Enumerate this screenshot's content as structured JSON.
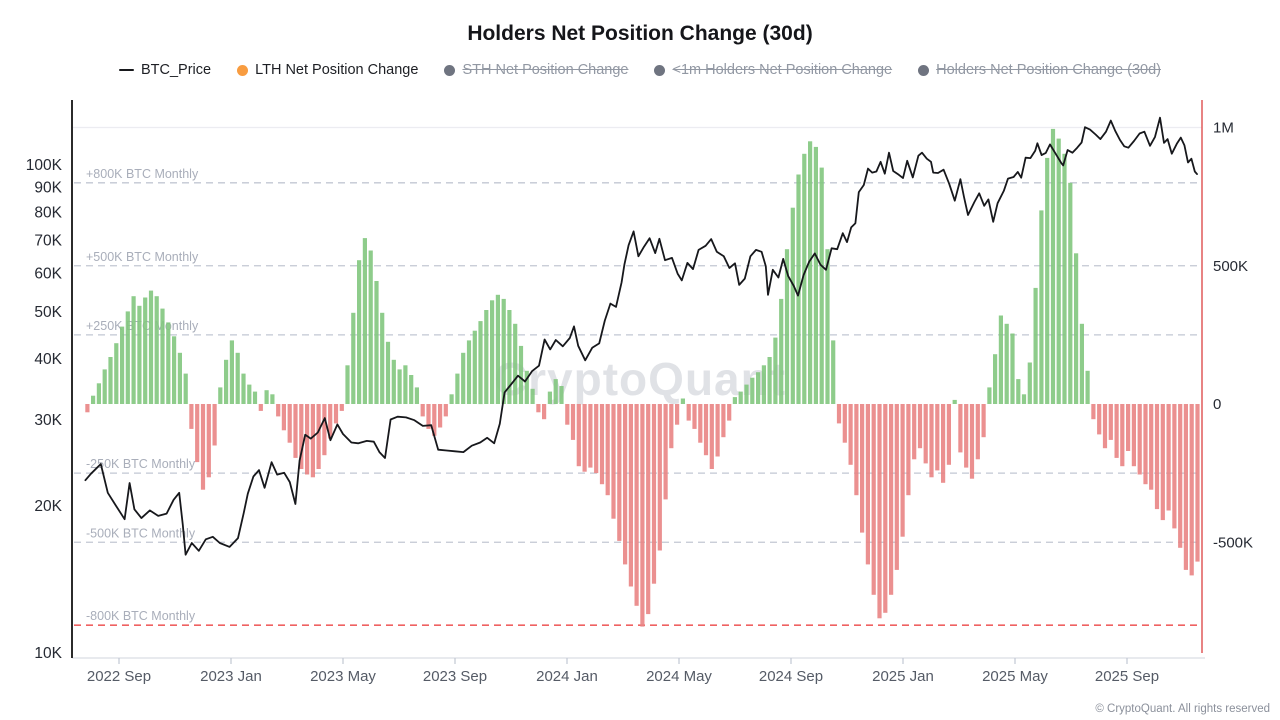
{
  "title": "Holders Net Position Change (30d)",
  "watermark": "CryptoQuant",
  "footer": "© CryptoQuant. All rights reserved",
  "colors": {
    "price_line": "#17181c",
    "bar_positive": "#82c77e",
    "bar_negative": "#e98484",
    "ref_line_gray": "#c2c7d3",
    "ref_line_red": "#ef6262",
    "ref_label": "#a9aeba",
    "left_axis_line": "#2b2b2b",
    "right_axis_line": "#e36464",
    "bottom_axis_line": "#dadde3",
    "top_gridline": "#ececf1",
    "axis_tick_label_dark": "#262a33",
    "x_tick_label": "#555b66",
    "legend_dot_orange": "#f89c40",
    "legend_dot_gray": "#6f7480"
  },
  "legend": {
    "items": [
      {
        "label": "BTC_Price",
        "marker": "line",
        "disabled": false
      },
      {
        "label": "LTH Net Position Change",
        "marker": "dot-orange",
        "disabled": false
      },
      {
        "label": "STH Net Position Change",
        "marker": "dot-gray",
        "disabled": true
      },
      {
        "label": "<1m Holders Net Position Change",
        "marker": "dot-gray",
        "disabled": true
      },
      {
        "label": "Holders Net Position Change (30d)",
        "marker": "dot-gray",
        "disabled": true
      }
    ]
  },
  "chart_data": {
    "type": "mixed: bar (LTH net position change, right axis) + line (BTC price, log left axis)",
    "title": "Holders Net Position Change (30d)",
    "x_unit": "months since 2022-08-01",
    "x_ticks": [
      {
        "label": "2022 Sep",
        "m": 1
      },
      {
        "label": "2023 Jan",
        "m": 5
      },
      {
        "label": "2023 May",
        "m": 9
      },
      {
        "label": "2023 Sep",
        "m": 13
      },
      {
        "label": "2024 Jan",
        "m": 17
      },
      {
        "label": "2024 May",
        "m": 21
      },
      {
        "label": "2024 Sep",
        "m": 25
      },
      {
        "label": "2025 Jan",
        "m": 29
      },
      {
        "label": "2025 May",
        "m": 33
      },
      {
        "label": "2025 Sep",
        "m": 37
      }
    ],
    "left_axis": {
      "scale": "log",
      "unit": "BTC price, thousands USD",
      "ticks": [
        {
          "label": "10K",
          "value": 10
        },
        {
          "label": "20K",
          "value": 20
        },
        {
          "label": "30K",
          "value": 30
        },
        {
          "label": "40K",
          "value": 40
        },
        {
          "label": "50K",
          "value": 50
        },
        {
          "label": "60K",
          "value": 60
        },
        {
          "label": "70K",
          "value": 70
        },
        {
          "label": "80K",
          "value": 80
        },
        {
          "label": "90K",
          "value": 90
        },
        {
          "label": "100K",
          "value": 100
        }
      ]
    },
    "right_axis": {
      "scale": "linear",
      "unit": "BTC net position change (thousands BTC)",
      "ticks": [
        {
          "label": "1M",
          "value": 1000
        },
        {
          "label": "500K",
          "value": 500
        },
        {
          "label": "0",
          "value": 0
        },
        {
          "label": "-500K",
          "value": -500
        }
      ],
      "visible_range": [
        -900,
        1100
      ]
    },
    "reference_lines": [
      {
        "label": "+800K BTC Monthly",
        "value": 800,
        "style": "gray"
      },
      {
        "label": "+500K BTC Monthly",
        "value": 500,
        "style": "gray"
      },
      {
        "label": "+250K BTC Monthly",
        "value": 250,
        "style": "gray"
      },
      {
        "label": "-250K BTC Monthly",
        "value": -250,
        "style": "gray"
      },
      {
        "label": "-500K BTC Monthly",
        "value": -500,
        "style": "gray"
      },
      {
        "label": "-800K BTC Monthly",
        "value": -800,
        "style": "red"
      }
    ],
    "bar_series": {
      "name": "LTH Net Position Change",
      "unit": "thousands of BTC (30d net change)",
      "start_month_offset": -0.13,
      "month_step": 0.2065,
      "values": [
        -30,
        30,
        75,
        125,
        170,
        220,
        280,
        335,
        390,
        355,
        385,
        410,
        390,
        345,
        295,
        245,
        185,
        110,
        -90,
        -210,
        -310,
        -265,
        -150,
        60,
        160,
        230,
        185,
        110,
        70,
        45,
        -25,
        50,
        35,
        -45,
        -95,
        -140,
        -195,
        -235,
        -255,
        -265,
        -235,
        -185,
        -125,
        -70,
        -25,
        140,
        330,
        520,
        600,
        555,
        445,
        330,
        225,
        160,
        125,
        140,
        105,
        60,
        -45,
        -90,
        -115,
        -85,
        -45,
        35,
        110,
        185,
        230,
        265,
        300,
        340,
        375,
        395,
        380,
        340,
        290,
        210,
        120,
        55,
        -30,
        -55,
        45,
        90,
        65,
        -75,
        -130,
        -225,
        -245,
        -230,
        -250,
        -290,
        -330,
        -415,
        -495,
        -580,
        -660,
        -730,
        -805,
        -760,
        -650,
        -530,
        -345,
        -160,
        -75,
        20,
        -60,
        -90,
        -140,
        -185,
        -235,
        -190,
        -120,
        -60,
        25,
        45,
        70,
        95,
        115,
        140,
        170,
        240,
        380,
        560,
        710,
        830,
        905,
        950,
        930,
        855,
        560,
        230,
        -70,
        -140,
        -220,
        -330,
        -465,
        -580,
        -690,
        -775,
        -755,
        -690,
        -600,
        -480,
        -330,
        -200,
        -160,
        -215,
        -265,
        -240,
        -285,
        -220,
        15,
        -175,
        -230,
        -270,
        -200,
        -120,
        60,
        180,
        320,
        290,
        255,
        90,
        35,
        150,
        420,
        700,
        890,
        995,
        960,
        905,
        800,
        545,
        290,
        120,
        -55,
        -110,
        -160,
        -130,
        -195,
        -225,
        -170,
        -225,
        -255,
        -290,
        -310,
        -380,
        -420,
        -385,
        -450,
        -520,
        -600,
        -620,
        -570
      ]
    },
    "price_series": {
      "name": "BTC_Price",
      "unit": "thousands USD",
      "points": [
        [
          -0.2,
          22.6
        ],
        [
          0,
          23.3
        ],
        [
          0.35,
          24.4
        ],
        [
          0.6,
          21.3
        ],
        [
          0.9,
          20.0
        ],
        [
          1.2,
          18.8
        ],
        [
          1.38,
          22.3
        ],
        [
          1.55,
          19.7
        ],
        [
          1.8,
          18.9
        ],
        [
          2.1,
          19.6
        ],
        [
          2.4,
          19.1
        ],
        [
          2.7,
          19.3
        ],
        [
          2.95,
          20.6
        ],
        [
          3.15,
          21.3
        ],
        [
          3.28,
          18.3
        ],
        [
          3.38,
          15.9
        ],
        [
          3.6,
          16.8
        ],
        [
          3.85,
          16.2
        ],
        [
          4.1,
          17.1
        ],
        [
          4.35,
          17.3
        ],
        [
          4.6,
          16.8
        ],
        [
          4.95,
          16.5
        ],
        [
          5.25,
          17.2
        ],
        [
          5.45,
          19.3
        ],
        [
          5.6,
          21.2
        ],
        [
          5.8,
          23.0
        ],
        [
          6.0,
          23.7
        ],
        [
          6.2,
          21.8
        ],
        [
          6.45,
          24.6
        ],
        [
          6.65,
          23.2
        ],
        [
          6.9,
          23.4
        ],
        [
          7.1,
          22.4
        ],
        [
          7.3,
          20.2
        ],
        [
          7.45,
          24.8
        ],
        [
          7.65,
          28.0
        ],
        [
          7.85,
          27.5
        ],
        [
          8.1,
          28.3
        ],
        [
          8.35,
          30.3
        ],
        [
          8.55,
          27.3
        ],
        [
          8.8,
          29.4
        ],
        [
          9.0,
          28.1
        ],
        [
          9.3,
          27.0
        ],
        [
          9.55,
          26.9
        ],
        [
          9.85,
          27.2
        ],
        [
          10.1,
          27.1
        ],
        [
          10.3,
          25.8
        ],
        [
          10.5,
          25.1
        ],
        [
          10.7,
          30.1
        ],
        [
          10.95,
          30.5
        ],
        [
          11.25,
          30.4
        ],
        [
          11.55,
          30.0
        ],
        [
          11.85,
          29.2
        ],
        [
          12.15,
          29.3
        ],
        [
          12.4,
          26.1
        ],
        [
          12.7,
          26.0
        ],
        [
          13.0,
          25.9
        ],
        [
          13.3,
          25.8
        ],
        [
          13.6,
          26.6
        ],
        [
          13.9,
          27.0
        ],
        [
          14.15,
          27.6
        ],
        [
          14.4,
          26.9
        ],
        [
          14.6,
          29.5
        ],
        [
          14.77,
          34.2
        ],
        [
          15.0,
          35.5
        ],
        [
          15.25,
          37.0
        ],
        [
          15.5,
          36.0
        ],
        [
          15.75,
          37.8
        ],
        [
          16.0,
          38.8
        ],
        [
          16.2,
          43.9
        ],
        [
          16.4,
          41.9
        ],
        [
          16.6,
          43.8
        ],
        [
          16.85,
          42.5
        ],
        [
          17.1,
          44.2
        ],
        [
          17.25,
          46.7
        ],
        [
          17.4,
          42.6
        ],
        [
          17.65,
          39.8
        ],
        [
          17.9,
          42.2
        ],
        [
          18.15,
          43.1
        ],
        [
          18.35,
          48.0
        ],
        [
          18.55,
          52.0
        ],
        [
          18.75,
          51.2
        ],
        [
          18.95,
          57.5
        ],
        [
          19.05,
          62.5
        ],
        [
          19.2,
          68.5
        ],
        [
          19.38,
          73.1
        ],
        [
          19.55,
          65.0
        ],
        [
          19.75,
          68.0
        ],
        [
          19.95,
          70.8
        ],
        [
          20.15,
          66.0
        ],
        [
          20.3,
          70.6
        ],
        [
          20.5,
          63.8
        ],
        [
          20.75,
          64.5
        ],
        [
          20.95,
          59.9
        ],
        [
          21.1,
          58.0
        ],
        [
          21.3,
          63.0
        ],
        [
          21.5,
          61.2
        ],
        [
          21.7,
          67.0
        ],
        [
          21.95,
          68.3
        ],
        [
          22.15,
          70.5
        ],
        [
          22.35,
          66.4
        ],
        [
          22.6,
          65.0
        ],
        [
          22.8,
          61.5
        ],
        [
          23.0,
          62.9
        ],
        [
          23.15,
          56.8
        ],
        [
          23.35,
          58.5
        ],
        [
          23.55,
          65.0
        ],
        [
          23.75,
          67.0
        ],
        [
          23.95,
          66.4
        ],
        [
          24.1,
          62.0
        ],
        [
          24.18,
          54.2
        ],
        [
          24.35,
          61.0
        ],
        [
          24.55,
          58.8
        ],
        [
          24.72,
          64.2
        ],
        [
          24.9,
          59.2
        ],
        [
          25.1,
          56.5
        ],
        [
          25.25,
          54.0
        ],
        [
          25.45,
          59.5
        ],
        [
          25.65,
          63.4
        ],
        [
          25.85,
          65.9
        ],
        [
          26.05,
          62.5
        ],
        [
          26.25,
          61.0
        ],
        [
          26.45,
          67.5
        ],
        [
          26.65,
          67.2
        ],
        [
          26.85,
          72.5
        ],
        [
          27.0,
          69.5
        ],
        [
          27.15,
          74.5
        ],
        [
          27.3,
          76.0
        ],
        [
          27.42,
          88.0
        ],
        [
          27.6,
          91.0
        ],
        [
          27.75,
          98.3
        ],
        [
          27.9,
          96.5
        ],
        [
          28.05,
          97.0
        ],
        [
          28.2,
          101.5
        ],
        [
          28.35,
          96.0
        ],
        [
          28.5,
          106.0
        ],
        [
          28.65,
          97.2
        ],
        [
          28.85,
          95.5
        ],
        [
          29.0,
          94.0
        ],
        [
          29.15,
          102.0
        ],
        [
          29.35,
          94.3
        ],
        [
          29.55,
          104.5
        ],
        [
          29.68,
          106.0
        ],
        [
          29.85,
          103.0
        ],
        [
          30.0,
          101.5
        ],
        [
          30.08,
          96.5
        ],
        [
          30.25,
          96.3
        ],
        [
          30.45,
          97.8
        ],
        [
          30.65,
          91.5
        ],
        [
          30.85,
          84.5
        ],
        [
          31.05,
          93.5
        ],
        [
          31.18,
          86.0
        ],
        [
          31.32,
          79.0
        ],
        [
          31.55,
          84.0
        ],
        [
          31.72,
          87.5
        ],
        [
          31.9,
          82.5
        ],
        [
          32.05,
          85.0
        ],
        [
          32.22,
          76.5
        ],
        [
          32.38,
          83.5
        ],
        [
          32.6,
          88.5
        ],
        [
          32.75,
          93.8
        ],
        [
          32.95,
          94.5
        ],
        [
          33.1,
          96.8
        ],
        [
          33.22,
          94.2
        ],
        [
          33.38,
          103.5
        ],
        [
          33.55,
          103.3
        ],
        [
          33.72,
          107.0
        ],
        [
          33.8,
          110.8
        ],
        [
          33.95,
          104.8
        ],
        [
          34.1,
          105.9
        ],
        [
          34.25,
          110.2
        ],
        [
          34.45,
          105.5
        ],
        [
          34.65,
          101.0
        ],
        [
          34.72,
          99.8
        ],
        [
          34.88,
          107.3
        ],
        [
          35.05,
          106.0
        ],
        [
          35.22,
          108.5
        ],
        [
          35.38,
          111.2
        ],
        [
          35.5,
          119.5
        ],
        [
          35.68,
          118.2
        ],
        [
          35.88,
          115.5
        ],
        [
          36.05,
          113.0
        ],
        [
          36.25,
          117.0
        ],
        [
          36.42,
          123.3
        ],
        [
          36.58,
          117.5
        ],
        [
          36.75,
          112.5
        ],
        [
          36.9,
          109.2
        ],
        [
          37.05,
          108.5
        ],
        [
          37.25,
          112.0
        ],
        [
          37.45,
          116.0
        ],
        [
          37.62,
          117.0
        ],
        [
          37.82,
          109.5
        ],
        [
          38.0,
          114.2
        ],
        [
          38.18,
          125.0
        ],
        [
          38.32,
          111.0
        ],
        [
          38.45,
          113.0
        ],
        [
          38.6,
          105.5
        ],
        [
          38.78,
          110.5
        ],
        [
          38.92,
          113.8
        ],
        [
          39.05,
          109.8
        ],
        [
          39.18,
          101.2
        ],
        [
          39.3,
          103.0
        ],
        [
          39.42,
          97.0
        ],
        [
          39.5,
          95.8
        ]
      ]
    }
  }
}
